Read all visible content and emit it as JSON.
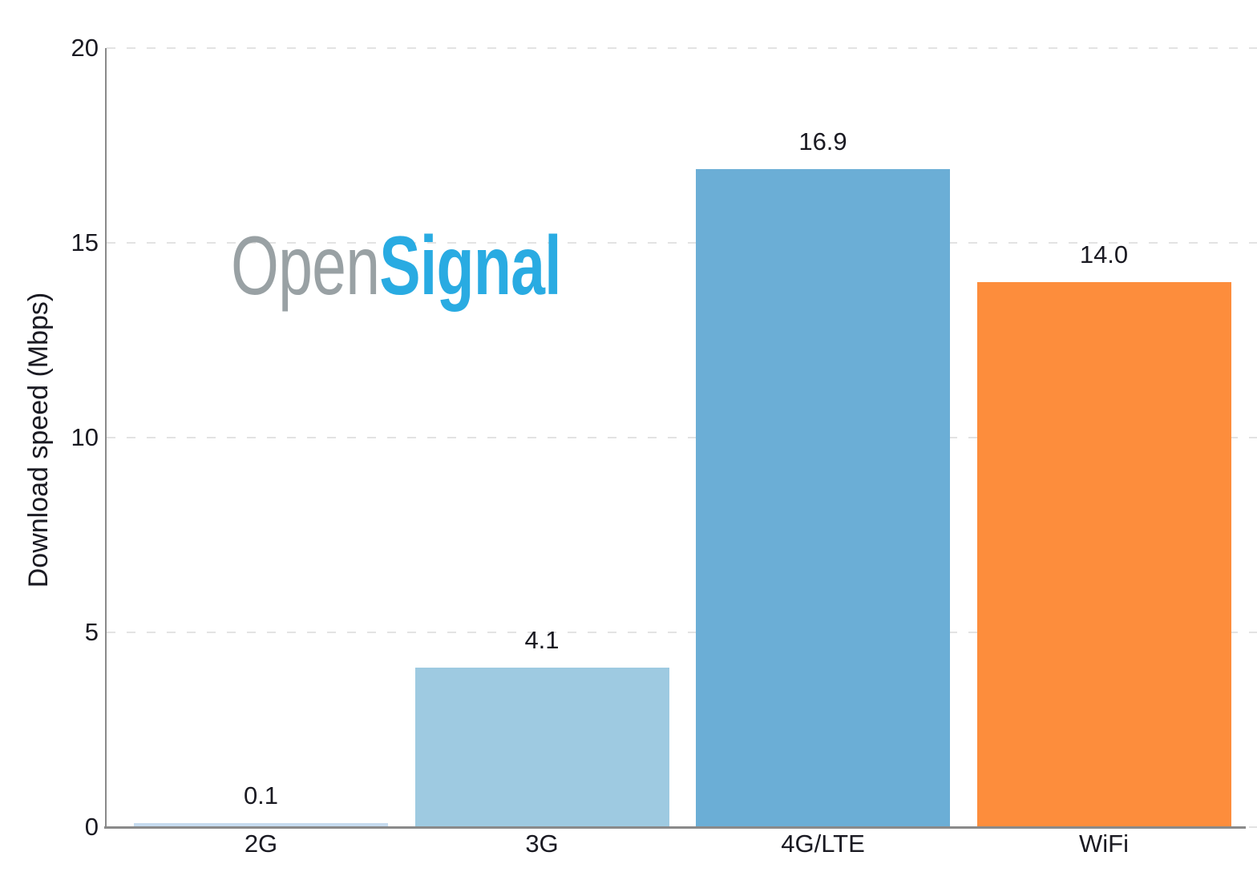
{
  "chart_data": {
    "type": "bar",
    "categories": [
      "2G",
      "3G",
      "4G/LTE",
      "WiFi"
    ],
    "values": [
      0.1,
      4.1,
      16.9,
      14.0
    ],
    "value_labels": [
      "0.1",
      "4.1",
      "16.9",
      "14.0"
    ],
    "bar_colors": [
      "#c6dbef",
      "#9ecae1",
      "#6baed6",
      "#fd8d3c"
    ],
    "title": "",
    "xlabel": "",
    "ylabel": "Download speed (Mbps)",
    "ylim": [
      0,
      20
    ],
    "yticks": [
      0,
      5,
      10,
      15,
      20
    ],
    "grid": "horizontal-dashed",
    "legend": "none",
    "watermark": "OpenSignal"
  },
  "logo": {
    "part1": "Open",
    "part2": "Signal",
    "part1_color": "#99a1a4",
    "part2_color": "#29abe2"
  },
  "colors": {
    "background": "#ffffff",
    "grid": "#e3e3e3",
    "axis": "#8a8a8a",
    "text": "#1a1a22"
  }
}
